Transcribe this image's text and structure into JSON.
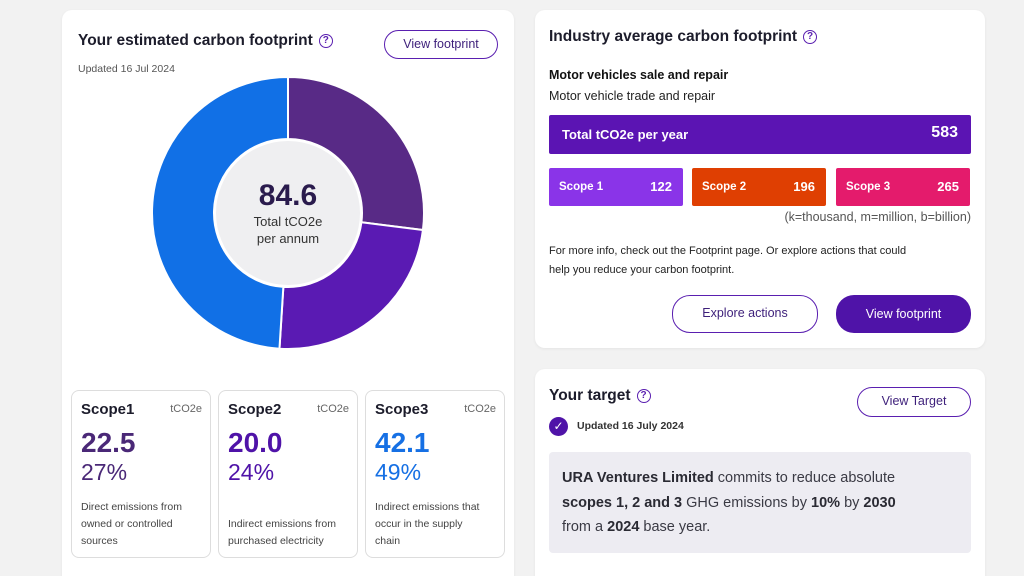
{
  "footprint": {
    "title": "Your estimated carbon footprint",
    "view_button": "View footprint",
    "updated": "Updated 16 Jul 2024",
    "total_value": "84.6",
    "total_label_1": "Total tCO2e",
    "total_label_2": "per annum",
    "donut_segments": [
      {
        "name": "Scope1",
        "percent": 27,
        "color": "#582a86"
      },
      {
        "name": "Scope2",
        "percent": 24,
        "color": "#5a1ab3"
      },
      {
        "name": "Scope3",
        "percent": 49,
        "color": "#1170e6"
      }
    ],
    "scopes": [
      {
        "name": "Scope1",
        "unit": "tCO2e",
        "value": "22.5",
        "percent": "27%",
        "color": "#4a2877",
        "desc": [
          "Direct emissions from",
          "owned or controlled",
          "sources"
        ]
      },
      {
        "name": "Scope2",
        "unit": "tCO2e",
        "value": "20.0",
        "percent": "24%",
        "color": "#4f13a8",
        "desc": [
          "Indirect emissions from",
          "purchased electricity"
        ]
      },
      {
        "name": "Scope3",
        "unit": "tCO2e",
        "value": "42.1",
        "percent": "49%",
        "color": "#1670e4",
        "desc": [
          "Indirect emissions that",
          "occur in the supply",
          "chain"
        ]
      }
    ]
  },
  "industry": {
    "title": "Industry average carbon footprint",
    "sector": "Motor vehicles sale and repair",
    "subsector": "Motor vehicle trade and repair",
    "total_label": "Total tCO2e per year",
    "total_value": "583",
    "scopes": [
      {
        "label": "Scope 1",
        "value": "122",
        "color": "#8a34e8"
      },
      {
        "label": "Scope 2",
        "value": "196",
        "color": "#df3f02"
      },
      {
        "label": "Scope 3",
        "value": "265",
        "color": "#e41b6c"
      }
    ],
    "units_note": "(k=thousand, m=million, b=billion)",
    "info_line_1": "For more info, check out the Footprint page. Or explore actions that could",
    "info_line_2": "help you reduce your carbon footprint.",
    "explore_button": "Explore actions",
    "view_button": "View footprint"
  },
  "target": {
    "title": "Your target",
    "view_button": "View Target",
    "updated": "Updated 16 July 2024",
    "company": "URA Ventures Limited",
    "text_1": " commits to reduce absolute",
    "scopes_text": "scopes 1, 2 and 3",
    "text_2": " GHG emissions by ",
    "reduction": "10%",
    "text_3": " by ",
    "target_year": "2030",
    "text_4": "from a ",
    "base_year": "2024",
    "text_5": " base year."
  }
}
